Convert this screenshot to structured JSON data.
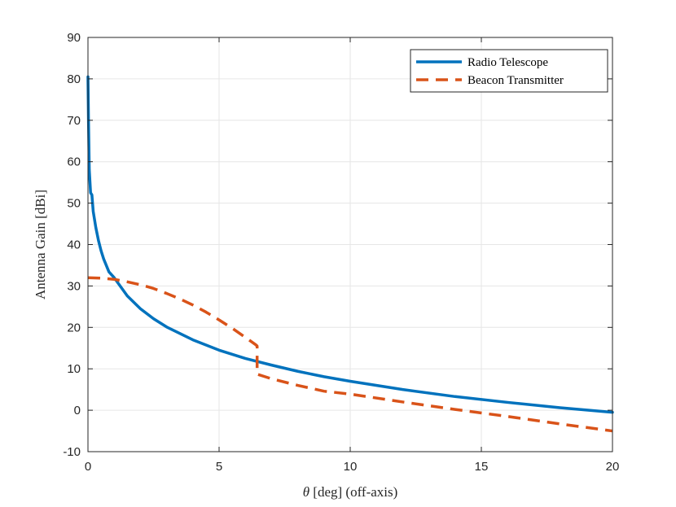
{
  "chart_data": {
    "type": "line",
    "title": "",
    "xlabel_symbol": "θ",
    "xlabel_rest": " [deg] (off-axis)",
    "ylabel": "Antenna Gain [dBi]",
    "xlim": [
      0,
      20
    ],
    "ylim": [
      -10,
      90
    ],
    "xticks": [
      0,
      5,
      10,
      15,
      20
    ],
    "yticks": [
      -10,
      0,
      10,
      20,
      30,
      40,
      50,
      60,
      70,
      80,
      90
    ],
    "xtick_labels": [
      "0",
      "5",
      "10",
      "15",
      "20"
    ],
    "ytick_labels": [
      "-10",
      "0",
      "10",
      "20",
      "30",
      "40",
      "50",
      "60",
      "70",
      "80",
      "90"
    ],
    "grid": true,
    "legend_position": "top-right",
    "series": [
      {
        "name": "Radio Telescope",
        "style": "solid",
        "color": "#0072BD",
        "x": [
          0,
          0.02,
          0.05,
          0.1,
          0.1,
          0.15,
          0.2,
          0.3,
          0.4,
          0.5,
          0.6,
          0.8,
          1.0,
          1.5,
          2.0,
          2.5,
          3.0,
          4.0,
          5.0,
          6.0,
          7.0,
          8.0,
          9.0,
          10.0,
          12.0,
          14.0,
          16.0,
          18.0,
          20.0
        ],
        "y": [
          80.5,
          70,
          58,
          52.5,
          52.5,
          52,
          48,
          44.1,
          41.0,
          38.5,
          36.5,
          33.4,
          32.0,
          27.6,
          24.5,
          22.1,
          20.1,
          17.0,
          14.5,
          12.5,
          10.9,
          9.4,
          8.1,
          7.0,
          5.0,
          3.3,
          1.9,
          0.6,
          -0.5
        ]
      },
      {
        "name": "Beacon Transmitter",
        "style": "dashed",
        "color": "#D95319",
        "x": [
          0,
          0.5,
          1.0,
          1.5,
          2.0,
          2.5,
          3.0,
          3.5,
          4.0,
          4.5,
          5.0,
          5.5,
          6.0,
          6.4,
          6.45,
          6.45,
          7.0,
          8.0,
          9.0,
          10.0,
          12.0,
          14.0,
          16.0,
          18.0,
          20.0
        ],
        "y": [
          32.0,
          31.9,
          31.6,
          31.0,
          30.3,
          29.4,
          28.2,
          26.9,
          25.4,
          23.7,
          21.8,
          19.8,
          17.6,
          15.8,
          15.5,
          8.7,
          7.6,
          6.0,
          4.6,
          3.9,
          2.0,
          0.2,
          -1.5,
          -3.3,
          -5.0
        ]
      }
    ]
  }
}
